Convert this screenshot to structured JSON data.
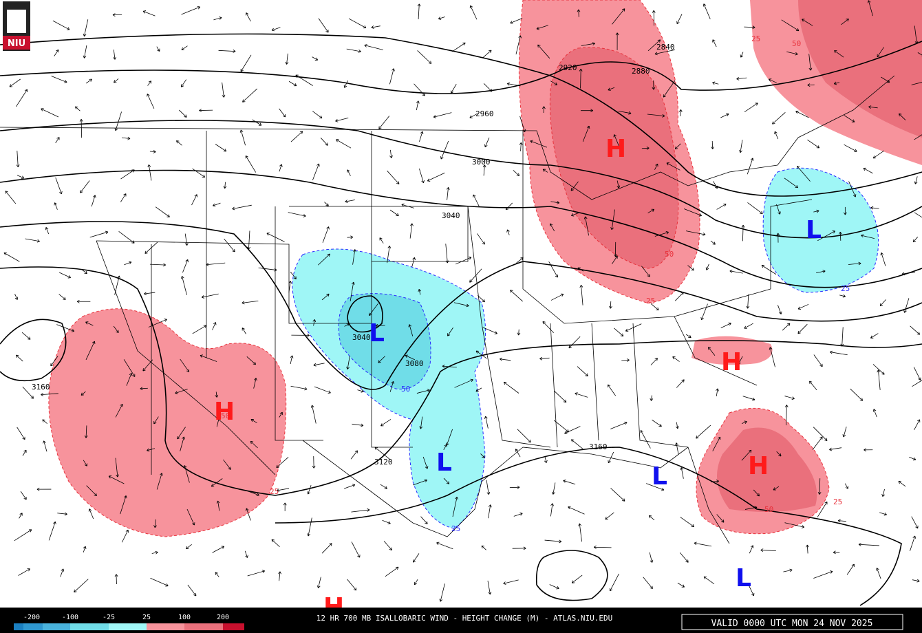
{
  "logo": "NIU",
  "footer": {
    "title": "12 HR 700 MB ISALLOBARIC WIND - HEIGHT CHANGE (M) - ATLAS.NIU.EDU",
    "valid": "VALID 0000 UTC MON 24 NOV 2025"
  },
  "legend": {
    "labels": [
      -200,
      -100,
      -25,
      25,
      100,
      200
    ]
  },
  "contour_labels": [
    2840,
    2880,
    2920,
    2960,
    3000,
    3040,
    3040,
    3080,
    3120,
    3160,
    3160
  ],
  "change_labels": [
    25,
    50,
    50,
    25,
    50,
    25,
    25,
    50,
    25,
    50,
    25
  ],
  "centers": [
    "H",
    "H",
    "L",
    "L",
    "H",
    "L",
    "H",
    "L",
    "L",
    "H"
  ]
}
